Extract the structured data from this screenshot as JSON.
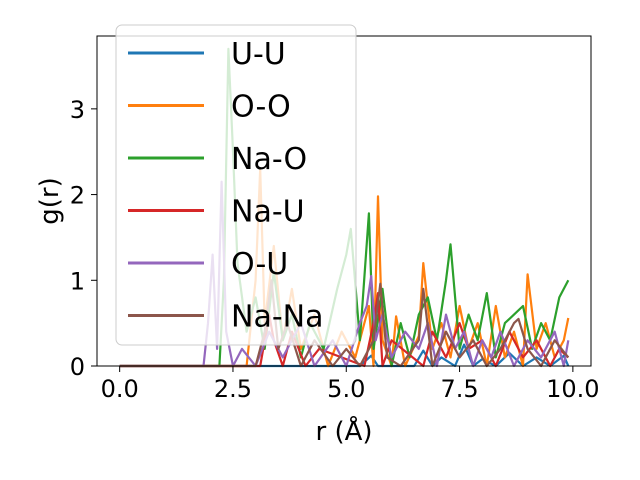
{
  "chart_data": {
    "type": "line",
    "xlabel": "r (Å)",
    "ylabel": "g(r)",
    "xlim": [
      -0.5,
      10.4
    ],
    "ylim": [
      0,
      3.85
    ],
    "xticks": [
      "0.0",
      "2.5",
      "5.0",
      "7.5",
      "10.0"
    ],
    "xtick_values": [
      0,
      2.5,
      5.0,
      7.5,
      10.0
    ],
    "yticks": [
      "0",
      "1",
      "2",
      "3"
    ],
    "ytick_values": [
      0,
      1,
      2,
      3
    ],
    "legend_placement": "upper-left",
    "grid": false,
    "series": [
      {
        "name": "U-U",
        "color": "#1f77b4",
        "x": [
          0.0,
          5.3,
          5.55,
          5.7,
          5.9,
          6.5,
          6.7,
          6.9,
          7.1,
          7.4,
          7.6,
          7.8,
          8.0,
          8.3,
          8.6,
          8.9,
          9.2,
          9.5,
          9.8,
          9.9
        ],
        "y": [
          0.0,
          0.0,
          0.12,
          0.0,
          0.0,
          0.0,
          0.18,
          0.0,
          0.1,
          0.0,
          0.25,
          0.0,
          0.08,
          0.0,
          0.15,
          0.0,
          0.1,
          0.0,
          0.12,
          0.0
        ]
      },
      {
        "name": "O-O",
        "color": "#ff7f0e",
        "x": [
          0.0,
          2.8,
          3.0,
          3.1,
          3.2,
          3.4,
          3.6,
          3.8,
          4.0,
          4.3,
          4.6,
          4.9,
          5.2,
          5.5,
          5.6,
          5.7,
          5.8,
          6.0,
          6.1,
          6.3,
          6.6,
          6.7,
          6.9,
          7.1,
          7.3,
          7.5,
          7.7,
          7.9,
          8.1,
          8.3,
          8.5,
          8.7,
          8.9,
          9.0,
          9.2,
          9.4,
          9.6,
          9.8,
          9.9
        ],
        "y": [
          0.0,
          0.0,
          1.0,
          2.3,
          0.5,
          1.4,
          0.3,
          0.9,
          0.2,
          0.6,
          0.0,
          0.4,
          0.1,
          0.7,
          0.0,
          1.98,
          0.3,
          0.0,
          0.58,
          0.0,
          0.35,
          1.2,
          0.2,
          0.5,
          0.1,
          0.7,
          0.2,
          0.5,
          0.0,
          0.7,
          0.1,
          0.4,
          0.0,
          1.07,
          0.2,
          0.5,
          0.1,
          0.3,
          0.56
        ]
      },
      {
        "name": "Na-O",
        "color": "#2ca02c",
        "x": [
          0.0,
          2.2,
          2.3,
          2.4,
          2.5,
          2.6,
          2.8,
          3.0,
          3.2,
          3.4,
          3.6,
          3.8,
          4.0,
          4.2,
          4.5,
          4.8,
          5.0,
          5.1,
          5.3,
          5.5,
          5.6,
          5.8,
          6.0,
          6.2,
          6.4,
          6.6,
          6.8,
          7.0,
          7.2,
          7.3,
          7.5,
          7.7,
          7.9,
          8.1,
          8.3,
          8.5,
          8.7,
          8.9,
          9.1,
          9.3,
          9.5,
          9.7,
          9.9
        ],
        "y": [
          0.0,
          0.0,
          1.0,
          3.7,
          2.5,
          1.2,
          0.4,
          0.8,
          0.2,
          1.1,
          0.3,
          0.6,
          0.1,
          0.5,
          0.2,
          0.9,
          1.3,
          1.6,
          0.3,
          1.78,
          0.2,
          0.9,
          0.0,
          0.5,
          0.1,
          0.6,
          0.8,
          0.3,
          1.0,
          1.42,
          0.2,
          0.6,
          0.3,
          0.85,
          0.1,
          0.5,
          0.6,
          0.7,
          0.2,
          0.5,
          0.3,
          0.8,
          1.0
        ]
      },
      {
        "name": "Na-U",
        "color": "#d62728",
        "x": [
          0.0,
          3.1,
          3.3,
          3.4,
          3.6,
          3.8,
          4.1,
          4.4,
          5.4,
          5.6,
          5.7,
          5.8,
          6.0,
          6.7,
          6.9,
          7.2,
          7.5,
          7.7,
          8.0,
          8.3,
          8.6,
          8.9,
          9.2,
          9.5,
          9.7,
          9.9
        ],
        "y": [
          0.0,
          0.0,
          0.6,
          0.3,
          0.0,
          0.4,
          0.0,
          0.2,
          0.0,
          0.5,
          0.85,
          0.0,
          0.3,
          0.0,
          0.4,
          0.1,
          0.5,
          0.2,
          0.3,
          0.0,
          0.4,
          0.1,
          0.3,
          0.0,
          0.2,
          0.1
        ]
      },
      {
        "name": "O-U",
        "color": "#9467bd",
        "x": [
          0.0,
          1.85,
          1.95,
          2.05,
          2.15,
          2.25,
          2.35,
          2.5,
          2.7,
          3.0,
          3.3,
          3.6,
          4.0,
          4.3,
          4.7,
          5.0,
          5.3,
          5.45,
          5.55,
          5.65,
          5.8,
          6.0,
          6.3,
          6.6,
          6.8,
          7.0,
          7.2,
          7.4,
          7.6,
          7.8,
          8.0,
          8.2,
          8.4,
          8.7,
          9.0,
          9.3,
          9.6,
          9.8,
          9.9
        ],
        "y": [
          0.0,
          0.0,
          0.5,
          1.3,
          0.2,
          2.15,
          0.4,
          0.0,
          0.2,
          0.0,
          0.4,
          0.1,
          0.5,
          0.0,
          0.3,
          0.0,
          0.5,
          0.7,
          1.05,
          0.3,
          0.6,
          0.1,
          0.4,
          0.2,
          0.5,
          0.0,
          0.6,
          0.2,
          0.4,
          0.0,
          0.3,
          0.1,
          0.4,
          0.0,
          0.3,
          0.1,
          0.4,
          0.0,
          0.3
        ]
      },
      {
        "name": "Na-Na",
        "color": "#8c564b",
        "x": [
          0.0,
          3.0,
          3.2,
          3.35,
          3.5,
          3.7,
          4.0,
          4.3,
          4.7,
          5.0,
          5.3,
          5.6,
          5.75,
          5.9,
          6.2,
          6.6,
          6.7,
          6.9,
          7.2,
          7.5,
          7.8,
          8.1,
          8.4,
          8.7,
          8.8,
          9.0,
          9.3,
          9.6,
          9.9
        ],
        "y": [
          0.0,
          0.0,
          0.4,
          1.0,
          0.2,
          0.5,
          0.0,
          0.3,
          0.0,
          0.2,
          0.0,
          0.3,
          0.96,
          0.1,
          0.0,
          0.3,
          0.9,
          0.0,
          0.4,
          0.1,
          0.3,
          0.0,
          0.2,
          0.5,
          0.55,
          0.2,
          0.0,
          0.3,
          0.1
        ]
      }
    ]
  }
}
